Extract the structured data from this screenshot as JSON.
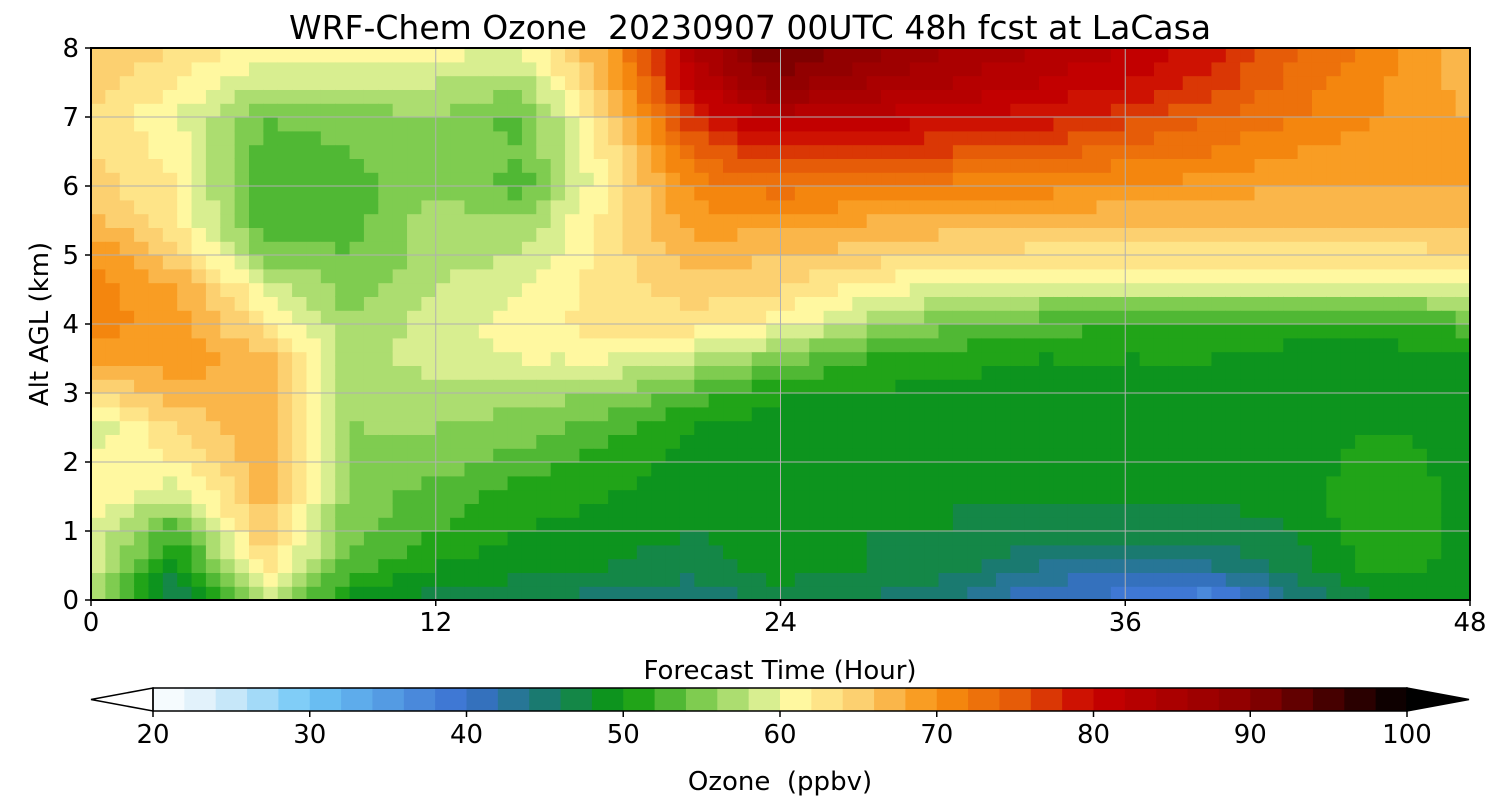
{
  "chart_data": {
    "type": "heatmap",
    "title": "WRF-Chem Ozone  20230907 00UTC 48h fcst at LaCasa",
    "xlabel": "Forecast Time (Hour)",
    "ylabel": "Alt AGL (km)",
    "xlim": [
      0,
      48
    ],
    "ylim": [
      0,
      8
    ],
    "x_ticks": [
      0,
      12,
      24,
      36,
      48
    ],
    "y_ticks": [
      0,
      1,
      2,
      3,
      4,
      5,
      6,
      7,
      8
    ],
    "grid": true,
    "x": [
      0,
      3,
      6,
      9,
      12,
      15,
      18,
      21,
      24,
      27,
      30,
      33,
      36,
      39,
      42,
      45,
      48
    ],
    "y": [
      0,
      0.5,
      1,
      1.5,
      2,
      2.5,
      3,
      3.5,
      4,
      4.5,
      5,
      5.5,
      6,
      6.5,
      7,
      7.5,
      8
    ],
    "z": [
      [
        58,
        44,
        58,
        49,
        47,
        46,
        45,
        44,
        47,
        46,
        44,
        40,
        39,
        36,
        44,
        48,
        48
      ],
      [
        59,
        49,
        63,
        53,
        50,
        49,
        48,
        47,
        49,
        48,
        47,
        44,
        43,
        44,
        47,
        51,
        49
      ],
      [
        60,
        52,
        66,
        55,
        52,
        50,
        49,
        48,
        49,
        48,
        48,
        47,
        47,
        47,
        48,
        52,
        49
      ],
      [
        62,
        58,
        67,
        55,
        53,
        51,
        50,
        49,
        49,
        49,
        48,
        48,
        48,
        48,
        49,
        52,
        49
      ],
      [
        61,
        62,
        67,
        56,
        55,
        53,
        51,
        49,
        48,
        49,
        48,
        48,
        48,
        48,
        49,
        51,
        49
      ],
      [
        58,
        64,
        68,
        56,
        56,
        55,
        53,
        50,
        49,
        49,
        49,
        48,
        48,
        48,
        49,
        50,
        49
      ],
      [
        64,
        67,
        68,
        57,
        57,
        57,
        56,
        53,
        50,
        50,
        49,
        49,
        49,
        49,
        49,
        49,
        49
      ],
      [
        68,
        69,
        67,
        57,
        59,
        60,
        60,
        58,
        55,
        52,
        51,
        50,
        50,
        50,
        49,
        49,
        50
      ],
      [
        71,
        69,
        63,
        56,
        59,
        61,
        63,
        63,
        61,
        57,
        54,
        53,
        52,
        52,
        51,
        51,
        53
      ],
      [
        71,
        68,
        60,
        55,
        58,
        60,
        63,
        65,
        64,
        61,
        59,
        58,
        58,
        58,
        58,
        58,
        59
      ],
      [
        70,
        65,
        55,
        54,
        57,
        58,
        63,
        67,
        66,
        65,
        64,
        63,
        63,
        63,
        63,
        63,
        64
      ],
      [
        67,
        62,
        53,
        53,
        57,
        56,
        63,
        69,
        69,
        68,
        67,
        67,
        66,
        66,
        66,
        66,
        66
      ],
      [
        65,
        62,
        52,
        53,
        56,
        53,
        62,
        71,
        73,
        72,
        71,
        71,
        70,
        69,
        68,
        68,
        68
      ],
      [
        64,
        61,
        53,
        54,
        56,
        54,
        63,
        74,
        78,
        77,
        76,
        75,
        73,
        72,
        70,
        69,
        68
      ],
      [
        64,
        60,
        54,
        55,
        56,
        53,
        65,
        78,
        83,
        82,
        80,
        79,
        77,
        74,
        72,
        70,
        68
      ],
      [
        65,
        62,
        58,
        58,
        58,
        57,
        67,
        82,
        89,
        86,
        84,
        82,
        80,
        77,
        73,
        70,
        67
      ],
      [
        66,
        64,
        61,
        61,
        61,
        60,
        69,
        84,
        93,
        89,
        86,
        84,
        82,
        79,
        74,
        71,
        67
      ]
    ],
    "colorbar": {
      "label": "Ozone  (ppbv)",
      "min": 20,
      "max": 100,
      "ticks": [
        20,
        30,
        40,
        50,
        60,
        70,
        80,
        90,
        100
      ],
      "extend": "both",
      "levels_step": 2
    },
    "colormap_stops": [
      [
        20,
        "#ffffff"
      ],
      [
        24,
        "#d8eefa"
      ],
      [
        30,
        "#6ec6f6"
      ],
      [
        40,
        "#3a6fd0"
      ],
      [
        45,
        "#1a7a70"
      ],
      [
        50,
        "#0a9a0a"
      ],
      [
        55,
        "#7fcc50"
      ],
      [
        59,
        "#d8ee90"
      ],
      [
        61,
        "#fff8a0"
      ],
      [
        65,
        "#fcd070"
      ],
      [
        70,
        "#f89010"
      ],
      [
        75,
        "#e65c08"
      ],
      [
        80,
        "#c80000"
      ],
      [
        90,
        "#8c0000"
      ],
      [
        100,
        "#000000"
      ]
    ]
  }
}
